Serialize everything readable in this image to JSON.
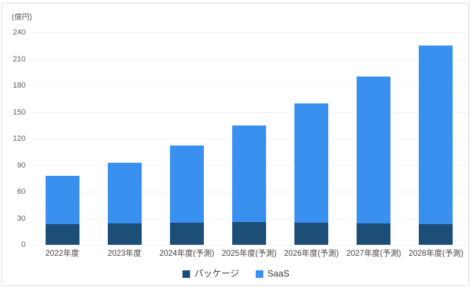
{
  "frame": {
    "background": "#ffffff",
    "border_color": "#d9d9d9"
  },
  "chart_data": {
    "type": "bar",
    "stacked": true,
    "title": "",
    "unit_label": "(億円)",
    "categories": [
      "2022年度",
      "2023年度",
      "2024年度(予測)",
      "2025年度(予測)",
      "2026年度(予測)",
      "2027年度(予測)",
      "2028年度(予測)"
    ],
    "series": [
      {
        "name": "パッケージ",
        "color": "#1D4E78",
        "values": [
          23,
          24,
          25,
          26,
          25,
          24,
          23
        ]
      },
      {
        "name": "SaaS",
        "color": "#3990EE",
        "values": [
          55,
          69,
          87,
          109,
          135,
          166,
          202
        ]
      }
    ],
    "totals": [
      78,
      93,
      112,
      135,
      160,
      190,
      225
    ],
    "ylim": [
      0,
      240
    ],
    "yticks": [
      0,
      30,
      60,
      90,
      120,
      150,
      180,
      210,
      240
    ],
    "grid": true,
    "gridline_color": "#f0f0f1",
    "axis_text_color": "#595959",
    "category_text_color": "#444444",
    "legend_position": "bottom",
    "legend_text_color": "#383838"
  }
}
